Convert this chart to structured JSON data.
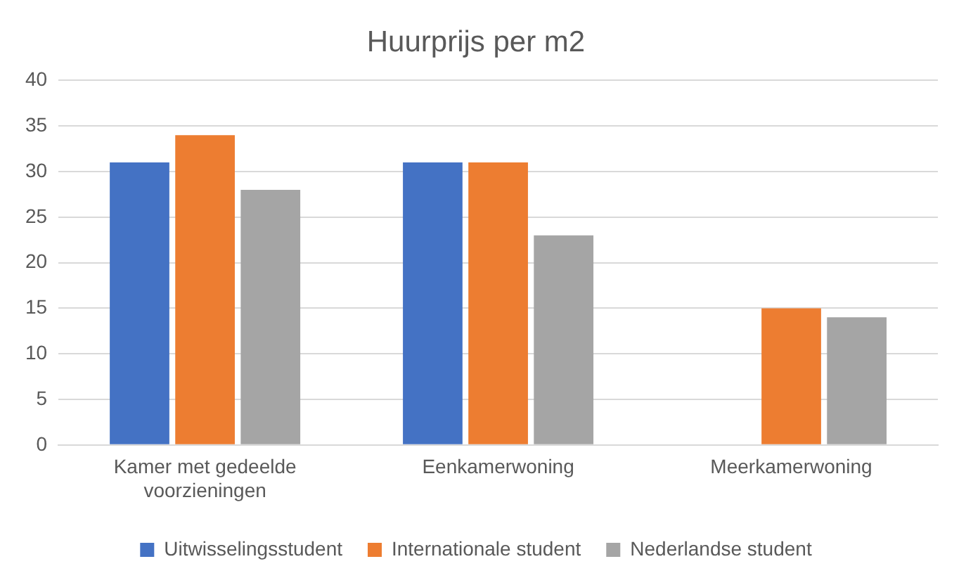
{
  "chart_data": {
    "type": "bar",
    "title": "Huurprijs per m2",
    "categories": [
      "Kamer met gedeelde voorzieningen",
      "Eenkamerwoning",
      "Meerkamerwoning"
    ],
    "series": [
      {
        "name": "Uitwisselingsstudent",
        "color": "#4472c4",
        "values": [
          31,
          31,
          null
        ]
      },
      {
        "name": "Internationale student",
        "color": "#ed7d31",
        "values": [
          34,
          31,
          15
        ]
      },
      {
        "name": "Nederlandse student",
        "color": "#a5a5a5",
        "values": [
          28,
          23,
          14
        ]
      }
    ],
    "ylim": [
      0,
      40
    ],
    "yticks": [
      0,
      5,
      10,
      15,
      20,
      25,
      30,
      35,
      40
    ],
    "grid": "y",
    "legend": "bottom"
  }
}
